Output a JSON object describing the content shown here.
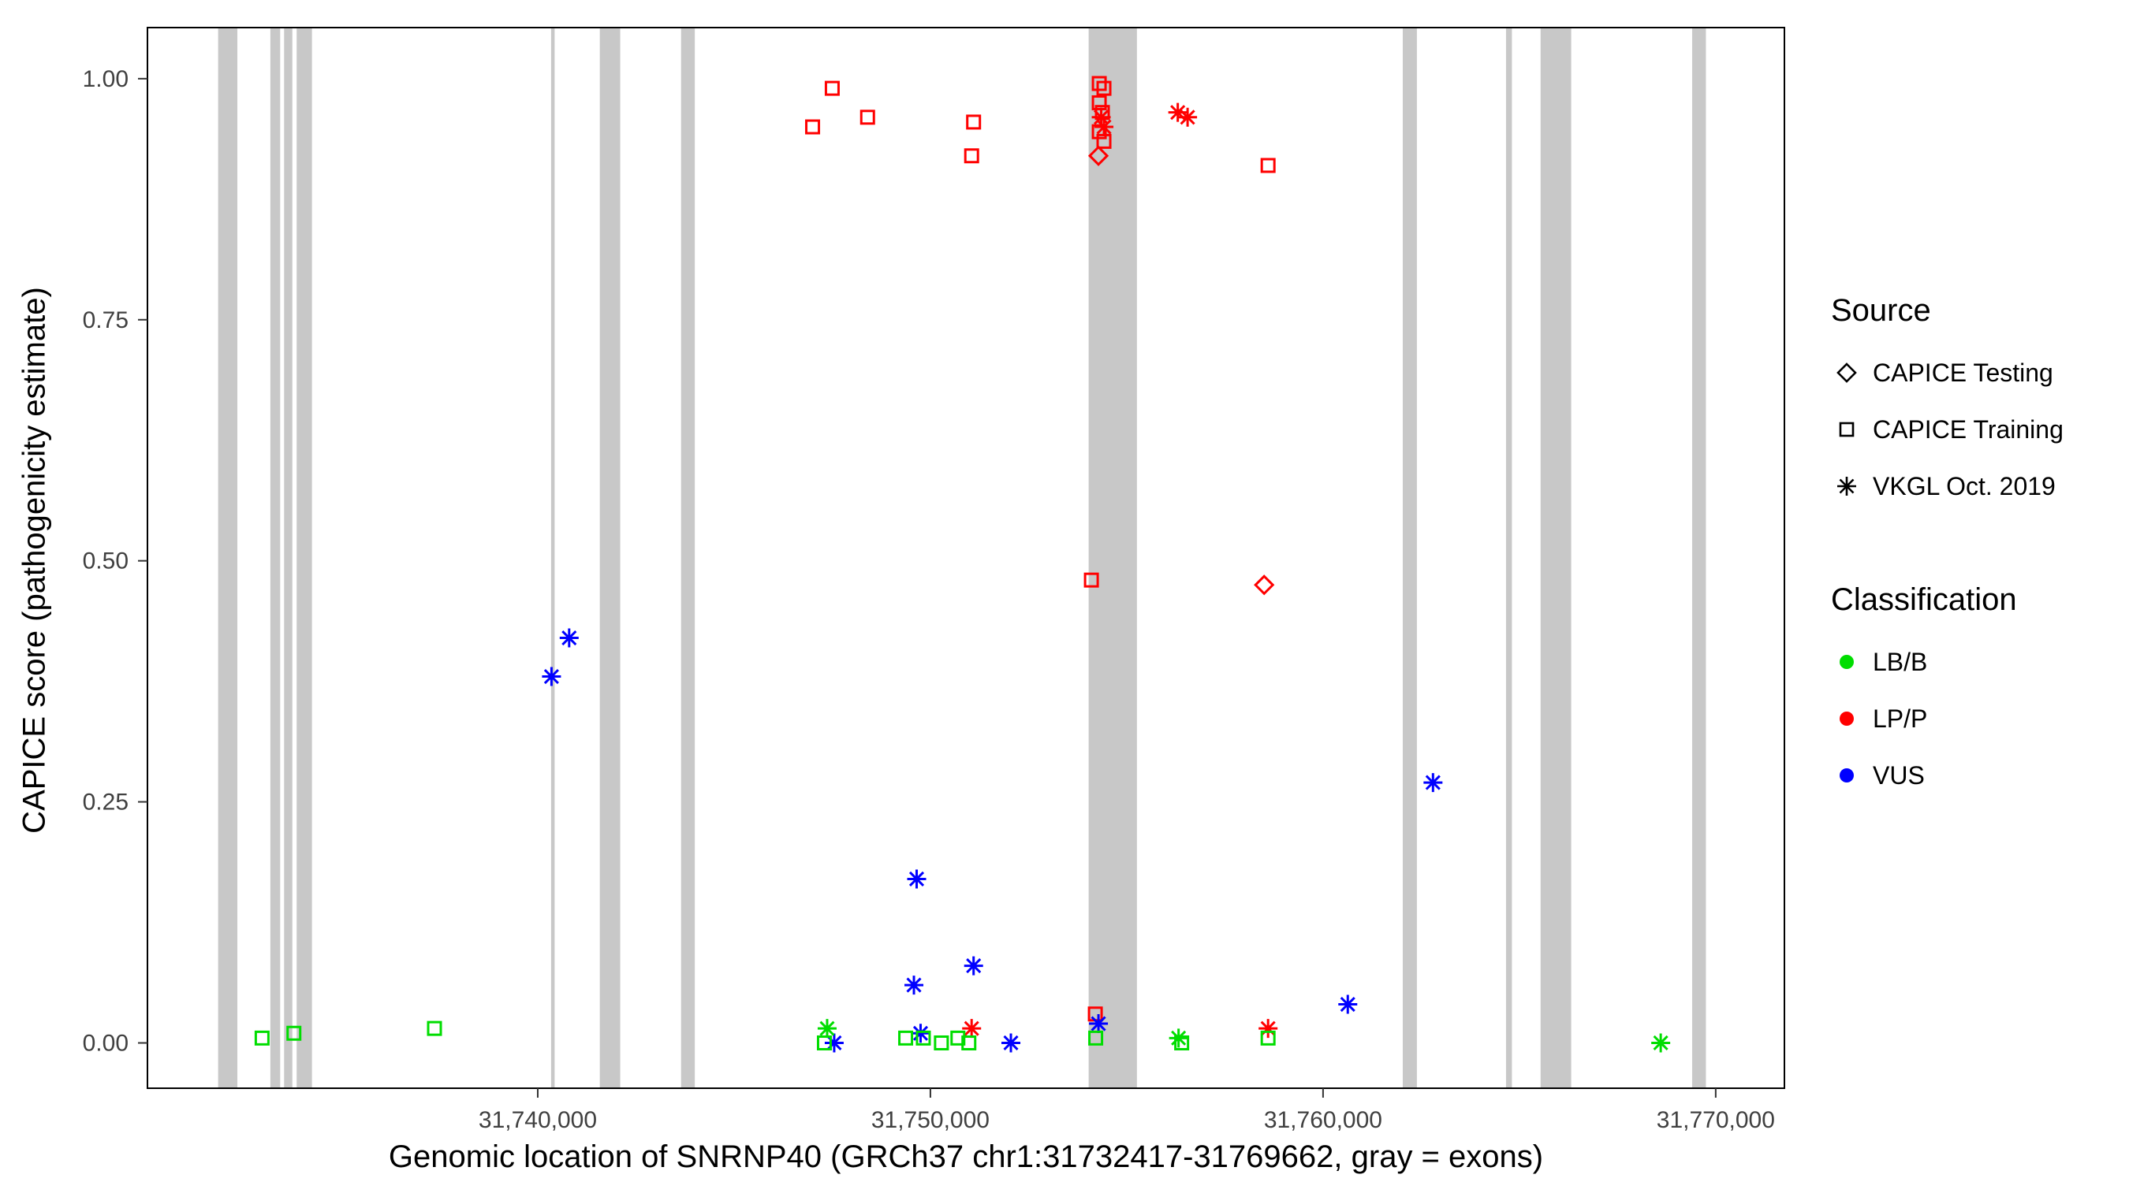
{
  "axes": {
    "x": {
      "title": "Genomic location of SNRNP40 (GRCh37 chr1:31732417-31769662, gray = exons)",
      "ticks": [
        {
          "value": 31740000,
          "label": "31,740,000"
        },
        {
          "value": 31750000,
          "label": "31,750,000"
        },
        {
          "value": 31760000,
          "label": "31,760,000"
        },
        {
          "value": 31770000,
          "label": "31,770,000"
        }
      ]
    },
    "y": {
      "title": "CAPICE score (pathogenicity estimate)",
      "ticks": [
        {
          "value": 0.0,
          "label": "0.00"
        },
        {
          "value": 0.25,
          "label": "0.25"
        },
        {
          "value": 0.5,
          "label": "0.50"
        },
        {
          "value": 0.75,
          "label": "0.75"
        },
        {
          "value": 1.0,
          "label": "1.00"
        }
      ]
    }
  },
  "legend": {
    "source": {
      "title": "Source",
      "items": [
        {
          "label": "CAPICE Testing",
          "shape": "diamond"
        },
        {
          "label": "CAPICE Training",
          "shape": "square"
        },
        {
          "label": "VKGL Oct. 2019",
          "shape": "asterisk"
        }
      ]
    },
    "classification": {
      "title": "Classification",
      "items": [
        {
          "label": "LB/B",
          "color": "#00dd00"
        },
        {
          "label": "LP/P",
          "color": "#ff0000"
        },
        {
          "label": "VUS",
          "color": "#0000ff"
        }
      ]
    }
  },
  "chart_data": {
    "type": "scatter",
    "title": "",
    "xlabel": "Genomic location of SNRNP40 (GRCh37 chr1:31732417-31769662, gray = exons)",
    "ylabel": "CAPICE score (pathogenicity estimate)",
    "x_range": [
      31730060,
      31771750
    ],
    "y_range": [
      -0.047,
      1.053
    ],
    "grid": false,
    "legend_position": "right",
    "exon_color": "#c8c8c8",
    "exon_bands": [
      [
        31731860,
        31732350
      ],
      [
        31733190,
        31733440
      ],
      [
        31733540,
        31733750
      ],
      [
        31733860,
        31734250
      ],
      [
        31740340,
        31740430
      ],
      [
        31741580,
        31742100
      ],
      [
        31743650,
        31744000
      ],
      [
        31754030,
        31755260
      ],
      [
        31762030,
        31762390
      ],
      [
        31764660,
        31764810
      ],
      [
        31765540,
        31766320
      ],
      [
        31769400,
        31769750
      ]
    ],
    "series": [
      {
        "name": "CAPICE Training / LP/P",
        "source": "CAPICE Training",
        "classification": "LP/P",
        "shape": "square",
        "color": "#ff0000",
        "points": [
          [
            31747000,
            0.95
          ],
          [
            31747500,
            0.99
          ],
          [
            31748400,
            0.96
          ],
          [
            31751100,
            0.955
          ],
          [
            31751050,
            0.92
          ],
          [
            31754300,
            0.995
          ],
          [
            31754420,
            0.99
          ],
          [
            31754300,
            0.975
          ],
          [
            31754380,
            0.965
          ],
          [
            31754300,
            0.945
          ],
          [
            31754420,
            0.935
          ],
          [
            31758600,
            0.91
          ],
          [
            31754100,
            0.48
          ],
          [
            31754200,
            0.03
          ]
        ]
      },
      {
        "name": "CAPICE Testing / LP/P",
        "source": "CAPICE Testing",
        "classification": "LP/P",
        "shape": "diamond",
        "color": "#ff0000",
        "points": [
          [
            31754280,
            0.92
          ],
          [
            31758500,
            0.475
          ]
        ]
      },
      {
        "name": "VKGL Oct. 2019 / LP/P",
        "source": "VKGL Oct. 2019",
        "classification": "LP/P",
        "shape": "asterisk",
        "color": "#ff0000",
        "points": [
          [
            31754350,
            0.96
          ],
          [
            31754420,
            0.95
          ],
          [
            31756300,
            0.965
          ],
          [
            31756550,
            0.96
          ],
          [
            31751050,
            0.015
          ],
          [
            31758600,
            0.015
          ]
        ]
      },
      {
        "name": "VKGL Oct. 2019 / VUS",
        "source": "VKGL Oct. 2019",
        "classification": "VUS",
        "shape": "asterisk",
        "color": "#0000ff",
        "points": [
          [
            31740350,
            0.38
          ],
          [
            31740800,
            0.42
          ],
          [
            31749650,
            0.17
          ],
          [
            31749580,
            0.06
          ],
          [
            31751100,
            0.08
          ],
          [
            31754280,
            0.02
          ],
          [
            31762800,
            0.27
          ],
          [
            31760630,
            0.04
          ],
          [
            31747550,
            0.0
          ],
          [
            31749750,
            0.01
          ],
          [
            31752050,
            0.0
          ]
        ]
      },
      {
        "name": "CAPICE Training / LB/B",
        "source": "CAPICE Training",
        "classification": "LB/B",
        "shape": "square",
        "color": "#00dd00",
        "points": [
          [
            31732980,
            0.005
          ],
          [
            31733790,
            0.01
          ],
          [
            31737370,
            0.015
          ],
          [
            31747300,
            0.0
          ],
          [
            31749370,
            0.005
          ],
          [
            31749820,
            0.005
          ],
          [
            31750280,
            0.0
          ],
          [
            31750700,
            0.005
          ],
          [
            31750980,
            0.0
          ],
          [
            31754210,
            0.005
          ],
          [
            31758600,
            0.005
          ],
          [
            31756400,
            0.0
          ]
        ]
      },
      {
        "name": "VKGL Oct. 2019 / LB/B",
        "source": "VKGL Oct. 2019",
        "classification": "LB/B",
        "shape": "asterisk",
        "color": "#00dd00",
        "points": [
          [
            31747370,
            0.015
          ],
          [
            31756320,
            0.005
          ],
          [
            31768600,
            0.0
          ]
        ]
      }
    ]
  }
}
